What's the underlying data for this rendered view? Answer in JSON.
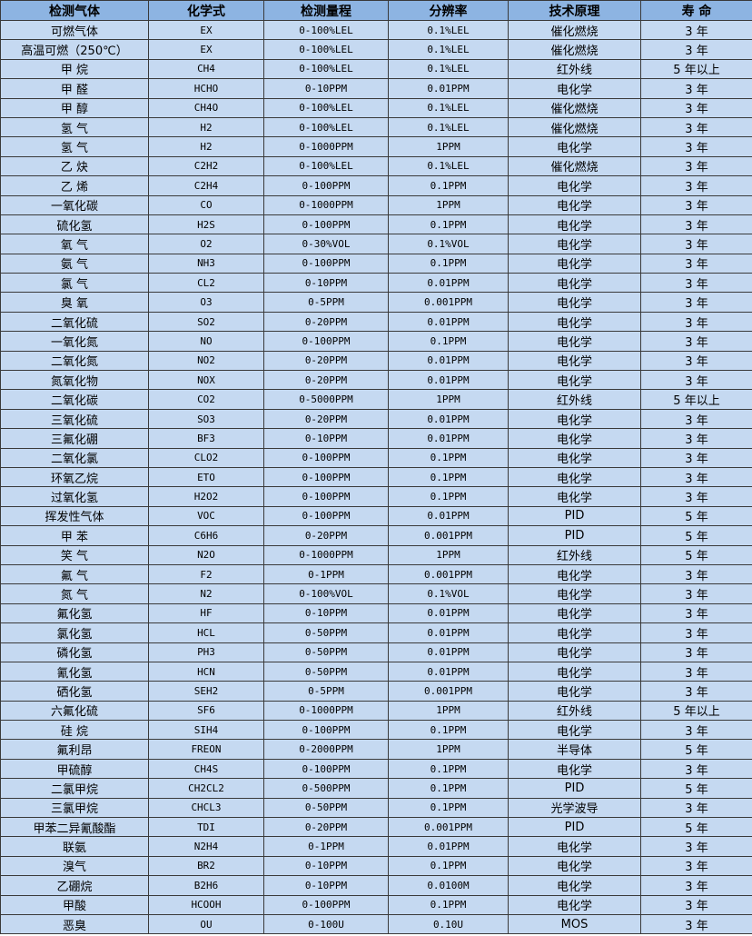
{
  "colors": {
    "header_bg": "#8db4e2",
    "row_bg": "#c5d9f1",
    "border": "#3a3a3a"
  },
  "headers": [
    "检测气体",
    "化学式",
    "检测量程",
    "分辨率",
    "技术原理",
    "寿 命"
  ],
  "rows": [
    [
      "可燃气体",
      "EX",
      "0-100%LEL",
      "0.1%LEL",
      "催化燃烧",
      "3 年"
    ],
    [
      "高温可燃（250℃）",
      "EX",
      "0-100%LEL",
      "0.1%LEL",
      "催化燃烧",
      "3 年"
    ],
    [
      "甲 烷",
      "CH4",
      "0-100%LEL",
      "0.1%LEL",
      "红外线",
      "5 年以上"
    ],
    [
      "甲 醛",
      "HCHO",
      "0-10PPM",
      "0.01PPM",
      "电化学",
      "3 年"
    ],
    [
      "甲 醇",
      "CH4O",
      "0-100%LEL",
      "0.1%LEL",
      "催化燃烧",
      "3 年"
    ],
    [
      "氢 气",
      "H2",
      "0-100%LEL",
      "0.1%LEL",
      "催化燃烧",
      "3 年"
    ],
    [
      "氢 气",
      "H2",
      "0-1000PPM",
      "1PPM",
      "电化学",
      "3 年"
    ],
    [
      "乙 炔",
      "C2H2",
      "0-100%LEL",
      "0.1%LEL",
      "催化燃烧",
      "3 年"
    ],
    [
      "乙 烯",
      "C2H4",
      "0-100PPM",
      "0.1PPM",
      "电化学",
      "3 年"
    ],
    [
      "一氧化碳",
      "CO",
      "0-1000PPM",
      "1PPM",
      "电化学",
      "3 年"
    ],
    [
      "硫化氢",
      "H2S",
      "0-100PPM",
      "0.1PPM",
      "电化学",
      "3 年"
    ],
    [
      "氧 气",
      "O2",
      "0-30%VOL",
      "0.1%VOL",
      "电化学",
      "3 年"
    ],
    [
      "氨 气",
      "NH3",
      "0-100PPM",
      "0.1PPM",
      "电化学",
      "3 年"
    ],
    [
      "氯 气",
      "CL2",
      "0-10PPM",
      "0.01PPM",
      "电化学",
      "3 年"
    ],
    [
      "臭 氧",
      "O3",
      "0-5PPM",
      "0.001PPM",
      "电化学",
      "3 年"
    ],
    [
      "二氧化硫",
      "SO2",
      "0-20PPM",
      "0.01PPM",
      "电化学",
      "3 年"
    ],
    [
      "一氧化氮",
      "NO",
      "0-100PPM",
      "0.1PPM",
      "电化学",
      "3 年"
    ],
    [
      "二氧化氮",
      "NO2",
      "0-20PPM",
      "0.01PPM",
      "电化学",
      "3 年"
    ],
    [
      "氮氧化物",
      "NOX",
      "0-20PPM",
      "0.01PPM",
      "电化学",
      "3 年"
    ],
    [
      "二氧化碳",
      "CO2",
      "0-5000PPM",
      "1PPM",
      "红外线",
      "5 年以上"
    ],
    [
      "三氧化硫",
      "SO3",
      "0-20PPM",
      "0.01PPM",
      "电化学",
      "3 年"
    ],
    [
      "三氟化硼",
      "BF3",
      "0-10PPM",
      "0.01PPM",
      "电化学",
      "3 年"
    ],
    [
      "二氧化氯",
      "CLO2",
      "0-100PPM",
      "0.1PPM",
      "电化学",
      "3 年"
    ],
    [
      "环氧乙烷",
      "ETO",
      "0-100PPM",
      "0.1PPM",
      "电化学",
      "3 年"
    ],
    [
      "过氧化氢",
      "H2O2",
      "0-100PPM",
      "0.1PPM",
      "电化学",
      "3 年"
    ],
    [
      "挥发性气体",
      "VOC",
      "0-100PPM",
      "0.01PPM",
      "PID",
      "5 年"
    ],
    [
      "甲 苯",
      "C6H6",
      "0-20PPM",
      "0.001PPM",
      "PID",
      "5 年"
    ],
    [
      "笑 气",
      "N2O",
      "0-1000PPM",
      "1PPM",
      "红外线",
      "5 年"
    ],
    [
      "氟 气",
      "F2",
      "0-1PPM",
      "0.001PPM",
      "电化学",
      "3 年"
    ],
    [
      "氮 气",
      "N2",
      "0-100%VOL",
      "0.1%VOL",
      "电化学",
      "3 年"
    ],
    [
      "氟化氢",
      "HF",
      "0-10PPM",
      "0.01PPM",
      "电化学",
      "3 年"
    ],
    [
      "氯化氢",
      "HCL",
      "0-50PPM",
      "0.01PPM",
      "电化学",
      "3 年"
    ],
    [
      "磷化氢",
      "PH3",
      "0-50PPM",
      "0.01PPM",
      "电化学",
      "3 年"
    ],
    [
      "氰化氢",
      "HCN",
      "0-50PPM",
      "0.01PPM",
      "电化学",
      "3 年"
    ],
    [
      "硒化氢",
      "SEH2",
      "0-5PPM",
      "0.001PPM",
      "电化学",
      "3 年"
    ],
    [
      "六氟化硫",
      "SF6",
      "0-1000PPM",
      "1PPM",
      "红外线",
      "5 年以上"
    ],
    [
      "硅 烷",
      "SIH4",
      "0-100PPM",
      "0.1PPM",
      "电化学",
      "3 年"
    ],
    [
      "氟利昂",
      "FREON",
      "0-2000PPM",
      "1PPM",
      "半导体",
      "5 年"
    ],
    [
      "甲硫醇",
      "CH4S",
      "0-100PPM",
      "0.1PPM",
      "电化学",
      "3 年"
    ],
    [
      "二氯甲烷",
      "CH2CL2",
      "0-500PPM",
      "0.1PPM",
      "PID",
      "5 年"
    ],
    [
      "三氯甲烷",
      "CHCL3",
      "0-50PPM",
      "0.1PPM",
      "光学波导",
      "3 年"
    ],
    [
      "甲苯二异氰酸酯",
      "TDI",
      "0-20PPM",
      "0.001PPM",
      "PID",
      "5 年"
    ],
    [
      "联氨",
      "N2H4",
      "0-1PPM",
      "0.01PPM",
      "电化学",
      "3 年"
    ],
    [
      "溴气",
      "BR2",
      "0-10PPM",
      "0.1PPM",
      "电化学",
      "3 年"
    ],
    [
      "乙硼烷",
      "B2H6",
      "0-10PPM",
      "0.0100M",
      "电化学",
      "3 年"
    ],
    [
      "甲酸",
      "HCOOH",
      "0-100PPM",
      "0.1PPM",
      "电化学",
      "3 年"
    ],
    [
      "恶臭",
      "OU",
      "0-100U",
      "0.10U",
      "MOS",
      "3 年"
    ]
  ]
}
